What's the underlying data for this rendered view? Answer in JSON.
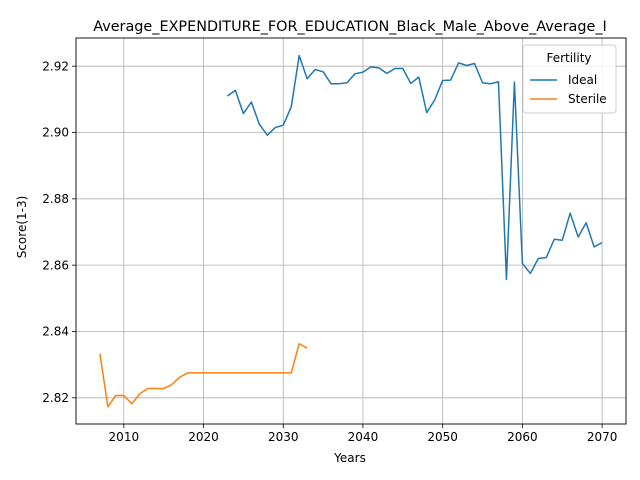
{
  "chart_data": {
    "type": "line",
    "title": "Average_EXPENDITURE_FOR_EDUCATION_Black_Male_Above_Average_I",
    "xlabel": "Years",
    "ylabel": "Score(1-3)",
    "xlim": [
      2004,
      2073
    ],
    "ylim": [
      2.8121,
      2.9285
    ],
    "xticks": [
      2010,
      2020,
      2030,
      2040,
      2050,
      2060,
      2070
    ],
    "yticks": [
      2.82,
      2.84,
      2.86,
      2.88,
      2.9,
      2.92
    ],
    "ytick_labels": [
      "2.82",
      "2.84",
      "2.86",
      "2.88",
      "2.90",
      "2.92"
    ],
    "grid": true,
    "legend": {
      "title": "Fertility",
      "placement": "top-right"
    },
    "series": [
      {
        "name": "Ideal",
        "color": "#1f77b4",
        "x": [
          2023,
          2024,
          2025,
          2026,
          2027,
          2028,
          2029,
          2030,
          2031,
          2032,
          2033,
          2034,
          2035,
          2036,
          2037,
          2038,
          2039,
          2040,
          2041,
          2042,
          2043,
          2044,
          2045,
          2046,
          2047,
          2048,
          2049,
          2050,
          2051,
          2052,
          2053,
          2054,
          2055,
          2056,
          2057,
          2058,
          2059,
          2060,
          2061,
          2062,
          2063,
          2064,
          2065,
          2066,
          2067,
          2068,
          2069,
          2070
        ],
        "y": [
          2.911,
          2.9127,
          2.9057,
          2.9092,
          2.9025,
          2.8992,
          2.9015,
          2.9022,
          2.9077,
          2.9232,
          2.9162,
          2.919,
          2.9183,
          2.9147,
          2.9147,
          2.915,
          2.9177,
          2.9182,
          2.9198,
          2.9195,
          2.9178,
          2.9193,
          2.9193,
          2.9148,
          2.9167,
          2.906,
          2.9098,
          2.9157,
          2.9158,
          2.921,
          2.9202,
          2.9208,
          2.915,
          2.9147,
          2.9153,
          2.8557,
          2.9152,
          2.8605,
          2.8575,
          2.862,
          2.8623,
          2.8678,
          2.8675,
          2.8757,
          2.8685,
          2.8728,
          2.8655,
          2.8668
        ]
      },
      {
        "name": "Sterile",
        "color": "#ff7f0e",
        "x": [
          2007,
          2008,
          2009,
          2010,
          2011,
          2012,
          2013,
          2014,
          2015,
          2016,
          2017,
          2018,
          2019,
          2020,
          2021,
          2022,
          2023,
          2024,
          2025,
          2026,
          2027,
          2028,
          2029,
          2030,
          2031,
          2032,
          2033
        ],
        "y": [
          2.8333,
          2.8173,
          2.8207,
          2.8207,
          2.8182,
          2.8212,
          2.8228,
          2.8228,
          2.8228,
          2.824,
          2.8262,
          2.8275,
          2.8275,
          2.8275,
          2.8275,
          2.8275,
          2.8275,
          2.8275,
          2.8275,
          2.8275,
          2.8275,
          2.8275,
          2.8275,
          2.8275,
          2.8275,
          2.8363,
          2.835
        ]
      }
    ]
  }
}
